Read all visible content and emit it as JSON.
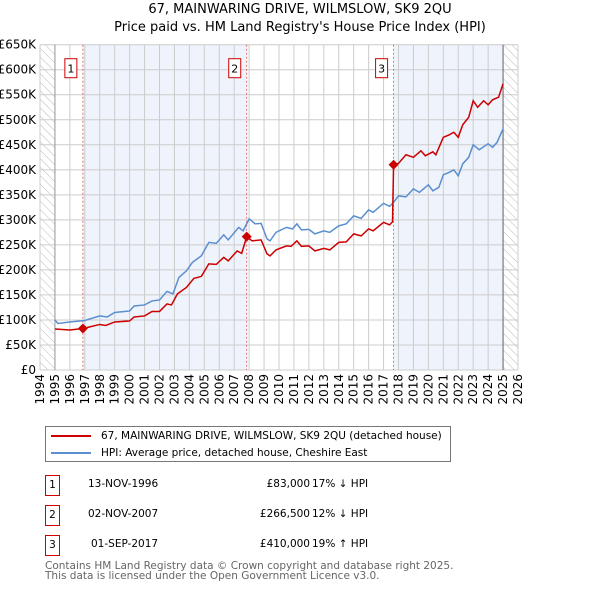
{
  "title": "67, MAINWARING DRIVE, WILMSLOW, SK9 2QU",
  "subtitle": "Price paid vs. HM Land Registry's House Price Index (HPI)",
  "colors": {
    "property": "#cc0000",
    "hpi": "#5b8fd0",
    "shade": "#eef3fc",
    "grid": "#cccccc"
  },
  "chart_data": {
    "type": "line",
    "title": "Price paid vs. HM Land Registry's House Price Index (HPI)",
    "xlim": [
      1994,
      2026
    ],
    "ylim": [
      0,
      650000
    ],
    "x_ticks": [
      "1994",
      "1995",
      "1996",
      "1997",
      "1998",
      "1999",
      "2000",
      "2001",
      "2002",
      "2003",
      "2004",
      "2005",
      "2006",
      "2007",
      "2008",
      "2009",
      "2010",
      "2011",
      "2012",
      "2013",
      "2014",
      "2015",
      "2016",
      "2017",
      "2018",
      "2019",
      "2020",
      "2021",
      "2022",
      "2023",
      "2024",
      "2025",
      "2026"
    ],
    "y_ticks": [
      "£0",
      "£50K",
      "£100K",
      "£150K",
      "£200K",
      "£250K",
      "£300K",
      "£350K",
      "£400K",
      "£450K",
      "£500K",
      "£550K",
      "£600K",
      "£650K"
    ],
    "grid": true,
    "series": [
      {
        "name": "67, MAINWARING DRIVE, WILMSLOW, SK9 2QU (detached house)",
        "x": [
          1995,
          1996,
          1996.87,
          1997.3,
          1998,
          1998.4,
          1999,
          2000,
          2000.3,
          2001,
          2001.5,
          2002,
          2002.5,
          2002.8,
          2003.2,
          2003.8,
          2004.3,
          2004.8,
          2005.3,
          2005.8,
          2006.3,
          2006.6,
          2007.2,
          2007.5,
          2007.84,
          2008.2,
          2008.8,
          2009.2,
          2009.4,
          2009.8,
          2010.5,
          2010.8,
          2011.2,
          2011.5,
          2012,
          2012.4,
          2013,
          2013.4,
          2014,
          2014.5,
          2015,
          2015.5,
          2016,
          2016.3,
          2017,
          2017.4,
          2017.6,
          2017.67,
          2018,
          2018.5,
          2019,
          2019.5,
          2019.8,
          2020.3,
          2020.5,
          2021,
          2021.4,
          2021.7,
          2022,
          2022.3,
          2022.7,
          2023,
          2023.3,
          2023.7,
          2024,
          2024.3,
          2024.7,
          2025
        ],
        "y": [
          82,
          80,
          83,
          86,
          91,
          89,
          96,
          98,
          106,
          108,
          117,
          117,
          132,
          130,
          152,
          165,
          183,
          187,
          212,
          211,
          225,
          218,
          238,
          233,
          266.5,
          258,
          260,
          232,
          228,
          240,
          248,
          247,
          258,
          247,
          248,
          238,
          243,
          240,
          255,
          256,
          272,
          268,
          282,
          278,
          295,
          290,
          296,
          410,
          413,
          430,
          425,
          438,
          428,
          436,
          430,
          465,
          470,
          475,
          465,
          490,
          505,
          538,
          525,
          538,
          530,
          540,
          545,
          572
        ]
      },
      {
        "name": "HPI: Average price, detached house, Cheshire East",
        "x": [
          1995,
          1995.2,
          1996,
          1997,
          1998,
          1998.5,
          1999,
          2000,
          2000.3,
          2001,
          2001.5,
          2002,
          2002.5,
          2002.9,
          2003.3,
          2003.8,
          2004.2,
          2004.8,
          2005.3,
          2005.8,
          2006.3,
          2006.6,
          2007.3,
          2007.6,
          2008,
          2008.4,
          2008.8,
          2009.2,
          2009.4,
          2009.8,
          2010.5,
          2010.9,
          2011.2,
          2011.5,
          2012,
          2012.4,
          2013,
          2013.4,
          2014,
          2014.5,
          2015,
          2015.5,
          2016,
          2016.3,
          2017,
          2017.4,
          2017.67,
          2018,
          2018.5,
          2019,
          2019.4,
          2020,
          2020.3,
          2020.7,
          2021,
          2021.4,
          2021.7,
          2022,
          2022.3,
          2022.7,
          2023,
          2023.4,
          2024,
          2024.3,
          2024.6,
          2025
        ],
        "y": [
          100,
          93,
          96,
          99,
          108,
          106,
          115,
          118,
          128,
          130,
          138,
          140,
          157,
          152,
          185,
          198,
          215,
          228,
          255,
          253,
          270,
          260,
          285,
          278,
          302,
          292,
          293,
          262,
          258,
          275,
          285,
          282,
          292,
          280,
          281,
          272,
          278,
          275,
          288,
          292,
          308,
          303,
          320,
          315,
          333,
          327,
          335,
          348,
          346,
          362,
          355,
          370,
          358,
          365,
          390,
          395,
          400,
          388,
          412,
          425,
          450,
          440,
          452,
          445,
          455,
          482
        ]
      }
    ],
    "y_units": "thousands GBP",
    "sales": [
      {
        "label": "1",
        "x": 1996.87,
        "price": 83
      },
      {
        "label": "2",
        "x": 2007.84,
        "price": 266.5
      },
      {
        "label": "3",
        "x": 2017.67,
        "price": 410
      }
    ],
    "legend_position": "below"
  },
  "table": [
    {
      "num": "1",
      "date": "13-NOV-1996",
      "price": "£83,000",
      "hpi": "17% ↓ HPI"
    },
    {
      "num": "2",
      "date": "02-NOV-2007",
      "price": "£266,500",
      "hpi": "12% ↓ HPI"
    },
    {
      "num": "3",
      "date": "01-SEP-2017",
      "price": "£410,000",
      "hpi": "19% ↑ HPI"
    }
  ],
  "footer": [
    "Contains HM Land Registry data © Crown copyright and database right 2025.",
    "This data is licensed under the Open Government Licence v3.0."
  ]
}
